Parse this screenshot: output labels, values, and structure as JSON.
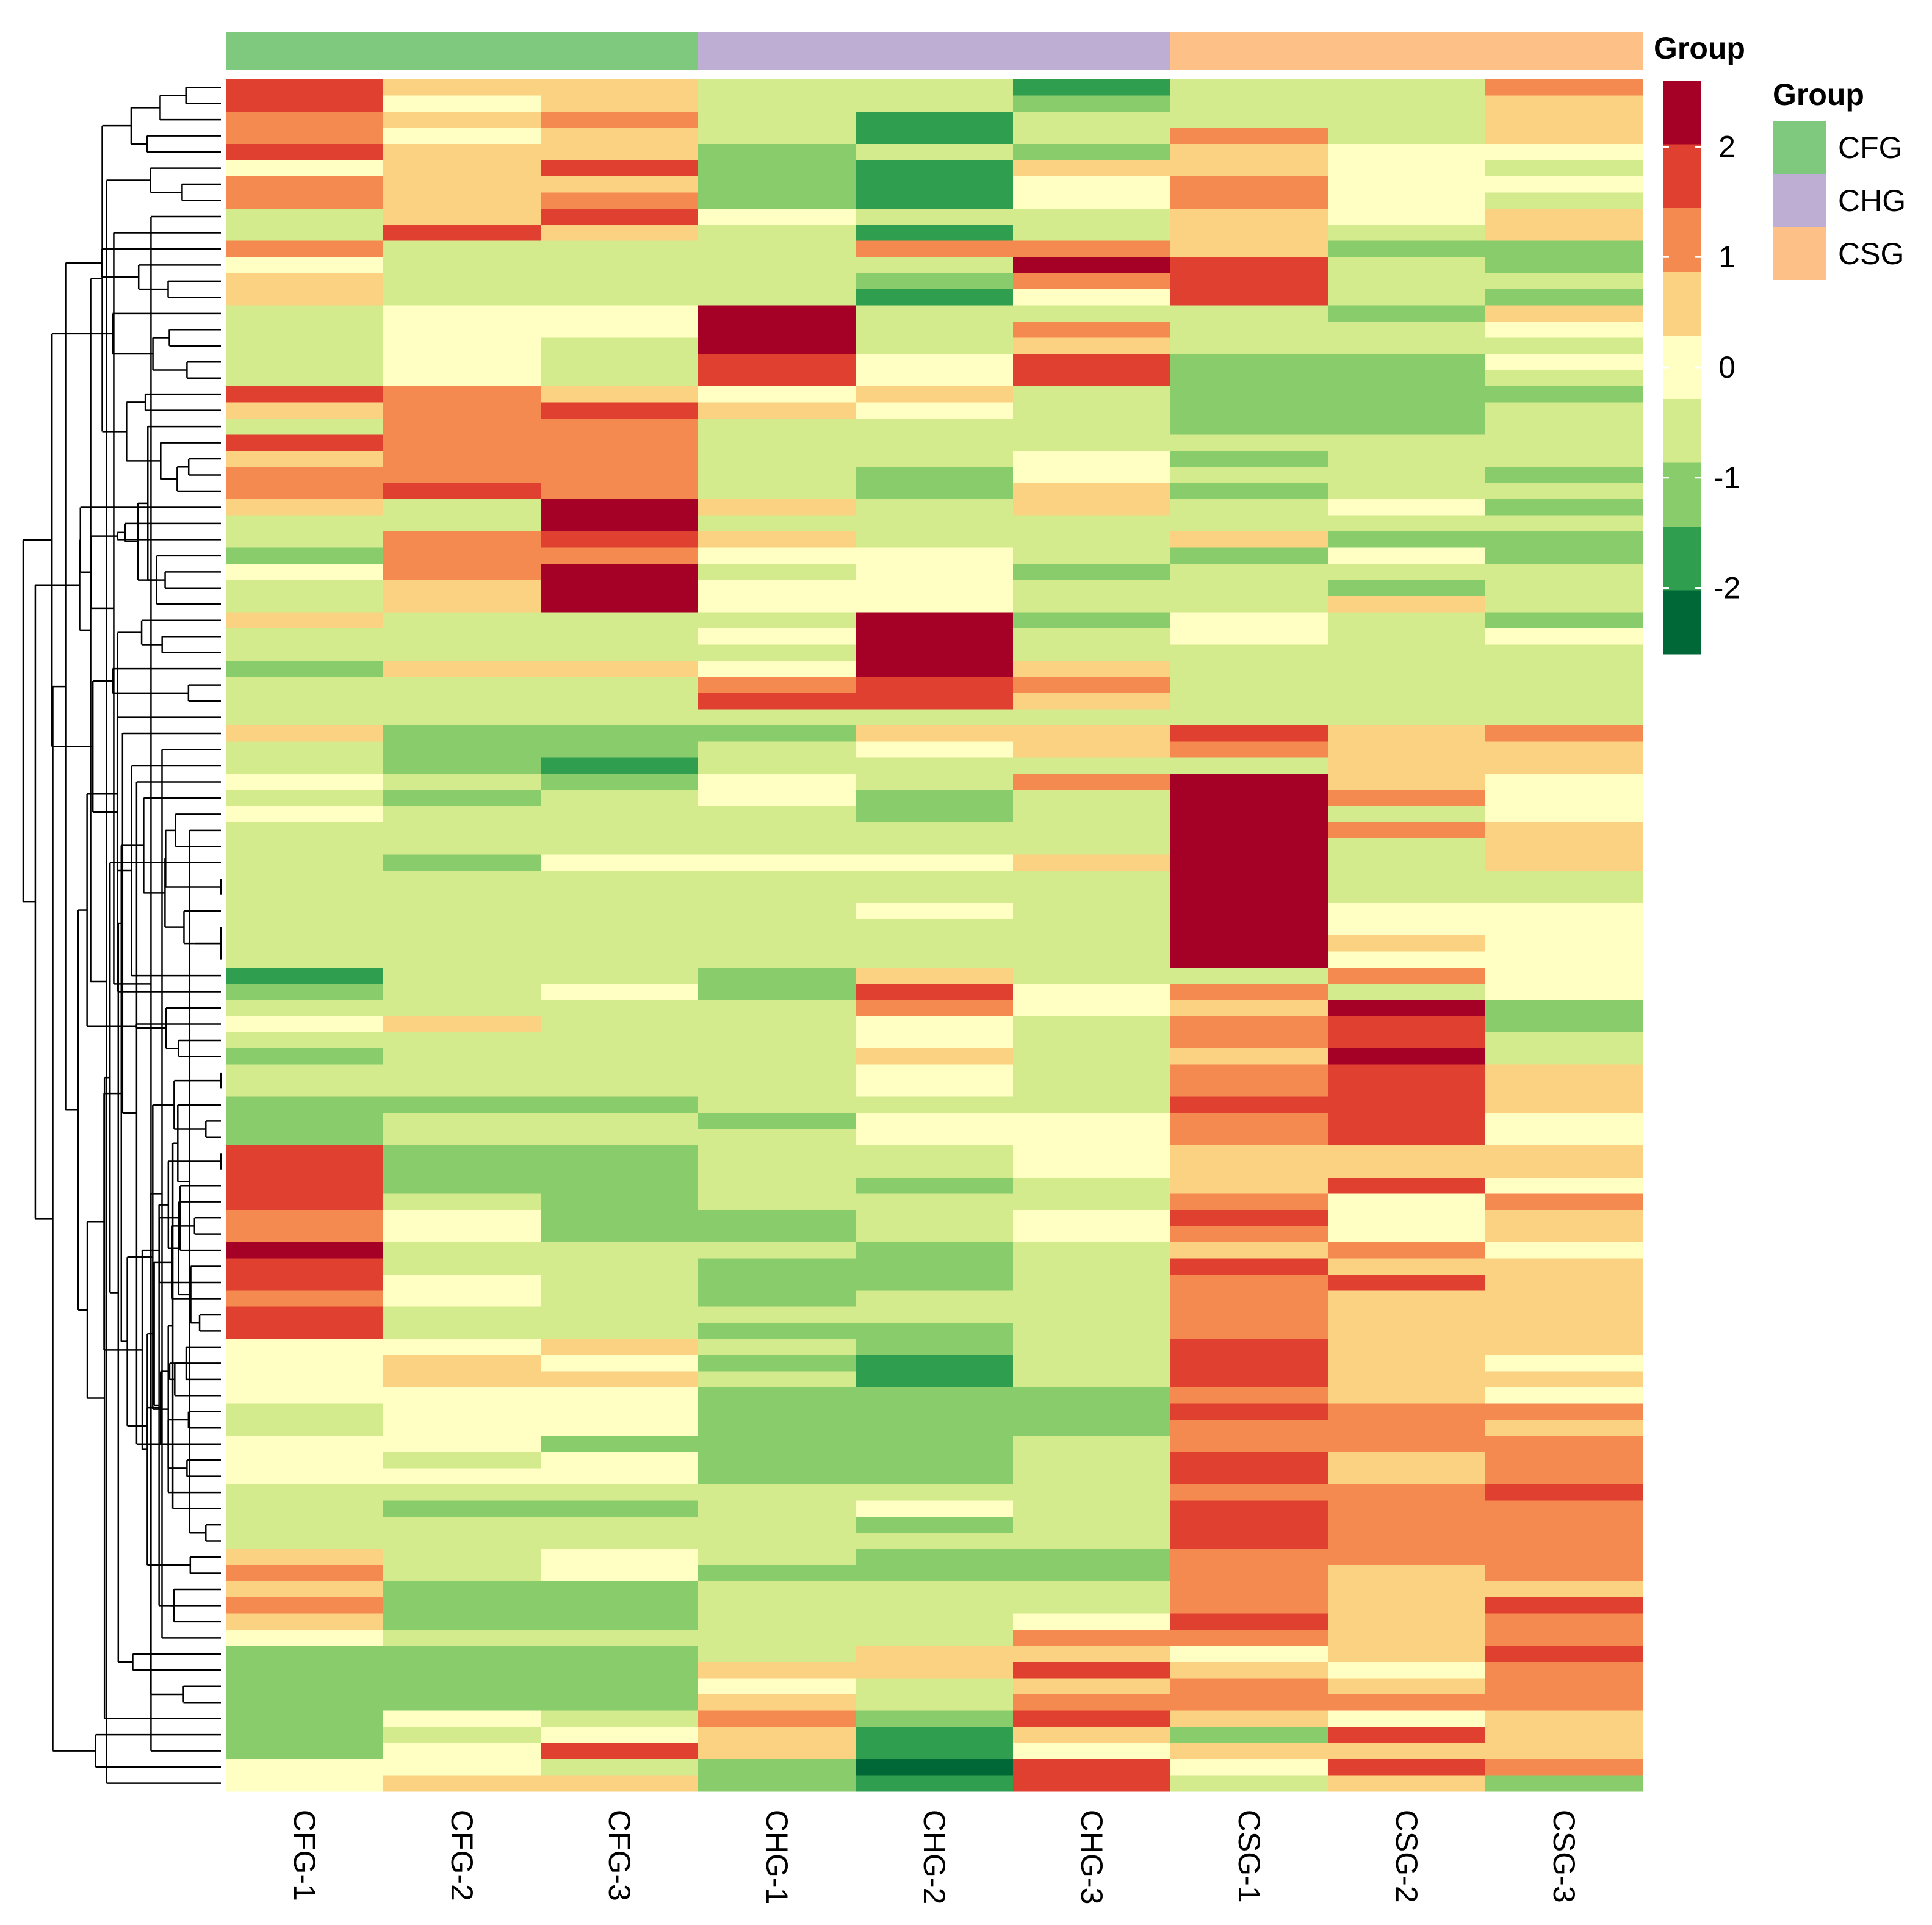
{
  "chart_data": {
    "type": "heatmap",
    "title": "",
    "columns": [
      "CFG-1",
      "CFG-2",
      "CFG-3",
      "CHG-1",
      "CHG-2",
      "CHG-3",
      "CSG-1",
      "CSG-2",
      "CSG-3"
    ],
    "column_groups": [
      "CFG",
      "CFG",
      "CFG",
      "CHG",
      "CHG",
      "CHG",
      "CSG",
      "CSG",
      "CSG"
    ],
    "annotation_label": "Group",
    "groups": [
      {
        "name": "CFG",
        "color": "#7fc97f"
      },
      {
        "name": "CHG",
        "color": "#beaed4"
      },
      {
        "name": "CSG",
        "color": "#fdc086"
      }
    ],
    "legend": {
      "scale_ticks": [
        "2",
        "1",
        "0",
        "-1",
        "-2"
      ],
      "tick_values": [
        2,
        1,
        0,
        -1,
        -2
      ],
      "range": [
        -2.6,
        2.6
      ],
      "colors": [
        "#a50026",
        "#d73027",
        "#f46d43",
        "#fdae61",
        "#fee08b",
        "#ffffbf",
        "#d9ef8b",
        "#a6d96a",
        "#66bd63",
        "#1a9850",
        "#006837"
      ],
      "display_colors": [
        "#a50026",
        "#e04030",
        "#f58a50",
        "#fbd281",
        "#ffffc4",
        "#d3ea8d",
        "#88cc6c",
        "#2f9e4f",
        "#006837"
      ]
    },
    "row_dendrogram": "shown (hierarchical clustering of rows)",
    "values": [
      [
        2,
        0.7,
        0.8,
        -0.8,
        -0.8,
        -1.7,
        -0.8,
        -0.8,
        1.3
      ],
      [
        2,
        0.1,
        0.8,
        -0.8,
        -0.8,
        -1.2,
        -0.8,
        -0.8,
        0.8
      ],
      [
        1.3,
        0.8,
        1.3,
        -0.8,
        -1.8,
        -0.8,
        -0.8,
        -0.8,
        0.8
      ],
      [
        1.3,
        0.1,
        0.8,
        -0.8,
        -1.8,
        -0.8,
        1.3,
        -0.8,
        0.8
      ],
      [
        2,
        0.8,
        0.8,
        -1.2,
        -0.8,
        -1.2,
        0.8,
        0.1,
        0.1
      ],
      [
        0.1,
        0.8,
        2,
        -1.2,
        -1.8,
        0.8,
        0.8,
        0.1,
        -0.8
      ],
      [
        1.3,
        0.8,
        0.8,
        -1.2,
        -1.8,
        0.1,
        1.3,
        0.1,
        0.1
      ],
      [
        1.3,
        0.8,
        1.3,
        -1.2,
        -1.8,
        0.1,
        1.3,
        0.1,
        -0.8
      ],
      [
        -0.8,
        0.8,
        2,
        0.1,
        -0.8,
        -0.8,
        0.8,
        0.1,
        0.8
      ],
      [
        -0.8,
        2,
        0.8,
        -0.8,
        -1.8,
        -0.8,
        0.8,
        -0.8,
        0.8
      ],
      [
        1.3,
        -0.8,
        -0.8,
        -0.8,
        1.3,
        1.3,
        0.8,
        -1.2,
        -1.2
      ],
      [
        0.1,
        -0.8,
        -0.8,
        -0.8,
        -0.8,
        2.6,
        2,
        -0.8,
        -1.2
      ],
      [
        0.8,
        -0.8,
        -0.8,
        -0.8,
        -1.2,
        1.3,
        2,
        -0.8,
        -0.8
      ],
      [
        0.8,
        -0.8,
        -0.8,
        -0.8,
        -1.8,
        0.1,
        2,
        -0.8,
        -1.2
      ],
      [
        -0.8,
        0.1,
        0.1,
        2.6,
        -0.8,
        -0.8,
        -0.8,
        -1.2,
        0.8
      ],
      [
        -0.8,
        0.1,
        0.1,
        2.6,
        -0.8,
        1.3,
        -0.8,
        -0.8,
        0.1
      ],
      [
        -0.8,
        0.1,
        -0.8,
        2.6,
        -0.8,
        0.8,
        -0.8,
        -0.8,
        -0.8
      ],
      [
        -0.8,
        0.1,
        -0.8,
        2,
        0.1,
        2,
        -1.2,
        -1.2,
        0.1
      ],
      [
        -0.8,
        0.1,
        -0.8,
        2,
        0.1,
        2,
        -1.2,
        -1.2,
        -0.8
      ],
      [
        2,
        1.3,
        0.8,
        0.1,
        0.8,
        -0.8,
        -1.2,
        -1.2,
        -1.2
      ],
      [
        0.8,
        1.3,
        2,
        0.8,
        0.1,
        -0.8,
        -1.2,
        -1.2,
        -0.8
      ],
      [
        -0.8,
        1.3,
        1.3,
        -0.8,
        -0.8,
        -0.8,
        -1.2,
        -1.2,
        -0.8
      ],
      [
        2,
        1.3,
        1.3,
        -0.8,
        -0.8,
        -0.8,
        -0.8,
        -0.8,
        -0.8
      ],
      [
        0.8,
        1.3,
        1.3,
        -0.8,
        -0.8,
        0.1,
        -1.2,
        -0.8,
        -0.8
      ],
      [
        1.3,
        1.3,
        1.3,
        -0.8,
        -1.2,
        0.1,
        -0.8,
        -0.8,
        -1.2
      ],
      [
        1.3,
        2,
        1.3,
        -0.8,
        -1.2,
        0.8,
        -1.2,
        -0.8,
        -0.8
      ],
      [
        0.8,
        -0.8,
        2.6,
        0.8,
        -0.8,
        0.8,
        -0.8,
        0.1,
        -1.2
      ],
      [
        -0.8,
        -0.8,
        2.6,
        -0.8,
        -0.8,
        -0.8,
        -0.8,
        -0.8,
        -0.8
      ],
      [
        -0.8,
        1.3,
        2,
        0.8,
        -0.8,
        -0.8,
        0.8,
        -1.2,
        -1.2
      ],
      [
        -1.2,
        1.3,
        1.3,
        0.1,
        0.1,
        -0.8,
        -1.2,
        0.1,
        -1.2
      ],
      [
        0.1,
        1.3,
        2.6,
        -0.8,
        0.1,
        -1.2,
        -0.8,
        -0.8,
        -0.8
      ],
      [
        -0.8,
        0.8,
        2.6,
        0.1,
        0.1,
        -0.8,
        -0.8,
        -1.2,
        -0.8
      ],
      [
        -0.8,
        0.8,
        2.6,
        0.1,
        0.1,
        -0.8,
        -0.8,
        0.8,
        -0.8
      ],
      [
        0.8,
        -0.8,
        -0.8,
        -0.8,
        2.6,
        -1.2,
        0.1,
        -0.8,
        -1.2
      ],
      [
        -0.8,
        -0.8,
        -0.8,
        0.1,
        2.6,
        -0.8,
        0.1,
        -0.8,
        0.1
      ],
      [
        -0.8,
        -0.8,
        -0.8,
        -0.8,
        2.6,
        -0.8,
        -0.8,
        -0.8,
        -0.8
      ],
      [
        -1.2,
        0.8,
        0.8,
        0.1,
        2.6,
        0.8,
        -0.8,
        -0.8,
        -0.8
      ],
      [
        -0.8,
        -0.8,
        -0.8,
        1.3,
        2,
        1.3,
        -0.8,
        -0.8,
        -0.8
      ],
      [
        -0.8,
        -0.8,
        -0.8,
        2,
        2,
        0.8,
        -0.8,
        -0.8,
        -0.8
      ],
      [
        -0.8,
        -0.8,
        -0.8,
        -0.8,
        -0.8,
        -0.8,
        -0.8,
        -0.8,
        -0.8
      ],
      [
        0.8,
        -1.2,
        -1.2,
        -1.2,
        0.8,
        0.8,
        2,
        0.8,
        1.3
      ],
      [
        -0.8,
        -1.2,
        -1.2,
        -0.8,
        0.1,
        0.8,
        1.3,
        0.8,
        0.8
      ],
      [
        -0.8,
        -1.2,
        -1.8,
        -0.8,
        -0.8,
        -0.8,
        -0.8,
        0.8,
        0.8
      ],
      [
        0.1,
        -0.8,
        -1.2,
        0.1,
        -0.8,
        1.3,
        2.6,
        0.8,
        0.1
      ],
      [
        -0.8,
        -1.2,
        -0.8,
        0.1,
        -1.2,
        -0.8,
        2.6,
        1.3,
        0.1
      ],
      [
        0.1,
        -0.8,
        -0.8,
        -0.8,
        -1.2,
        -0.8,
        2.6,
        -0.8,
        0.1
      ],
      [
        -0.8,
        -0.8,
        -0.8,
        -0.8,
        -0.8,
        -0.8,
        2.6,
        1.3,
        0.8
      ],
      [
        -0.8,
        -0.8,
        -0.8,
        -0.8,
        -0.8,
        -0.8,
        2.6,
        -0.8,
        0.8
      ],
      [
        -0.8,
        -1.2,
        0.1,
        0.1,
        0.1,
        0.8,
        2.6,
        -0.8,
        0.8
      ],
      [
        -0.8,
        -0.8,
        -0.8,
        -0.8,
        -0.8,
        -0.8,
        2.6,
        -0.8,
        -0.8
      ],
      [
        -0.8,
        -0.8,
        -0.8,
        -0.8,
        -0.8,
        -0.8,
        2.6,
        -0.8,
        -0.8
      ],
      [
        -0.8,
        -0.8,
        -0.8,
        -0.8,
        0.1,
        -0.8,
        2.6,
        0.1,
        0.1
      ],
      [
        -0.8,
        -0.8,
        -0.8,
        -0.8,
        -0.8,
        -0.8,
        2.6,
        0.1,
        0.1
      ],
      [
        -0.8,
        -0.8,
        -0.8,
        -0.8,
        -0.8,
        -0.8,
        2.6,
        0.8,
        0.1
      ],
      [
        -0.8,
        -0.8,
        -0.8,
        -0.8,
        -0.8,
        -0.8,
        2.6,
        0.1,
        0.1
      ],
      [
        -1.8,
        -0.8,
        -0.8,
        -1.2,
        0.8,
        -0.8,
        -0.8,
        1.3,
        0.1
      ],
      [
        -1.2,
        -0.8,
        0.1,
        -1.2,
        2,
        0.1,
        1.3,
        -0.8,
        0.1
      ],
      [
        -0.8,
        -0.8,
        -0.8,
        -0.8,
        1.3,
        0.1,
        0.8,
        2.6,
        -1.2
      ],
      [
        0.1,
        0.8,
        -0.8,
        -0.8,
        0.1,
        -0.8,
        1.3,
        2,
        -1.2
      ],
      [
        -0.8,
        -0.8,
        -0.8,
        -0.8,
        0.1,
        -0.8,
        1.3,
        2,
        -0.8
      ],
      [
        -1.2,
        -0.8,
        -0.8,
        -0.8,
        0.8,
        -0.8,
        0.8,
        2.6,
        -0.8
      ],
      [
        -0.8,
        -0.8,
        -0.8,
        -0.8,
        0.1,
        -0.8,
        1.3,
        2,
        0.8
      ],
      [
        -0.8,
        -0.8,
        -0.8,
        -0.8,
        0.1,
        -0.8,
        1.3,
        2,
        0.8
      ],
      [
        -1.2,
        -1.2,
        -1.2,
        -0.8,
        -0.8,
        -0.8,
        2,
        2,
        0.8
      ],
      [
        -1.2,
        -0.8,
        -0.8,
        -1.2,
        0.1,
        0.1,
        1.3,
        2,
        0.1
      ],
      [
        -1.2,
        -0.8,
        -0.8,
        -0.8,
        0.1,
        0.1,
        1.3,
        2,
        0.1
      ],
      [
        2,
        -1.2,
        -1.2,
        -0.8,
        -0.8,
        0.1,
        0.8,
        0.8,
        0.8
      ],
      [
        2,
        -1.2,
        -1.2,
        -0.8,
        -0.8,
        0.1,
        0.8,
        0.8,
        0.8
      ],
      [
        2,
        -1.2,
        -1.2,
        -0.8,
        -1.2,
        -0.8,
        0.8,
        2,
        0.1
      ],
      [
        2,
        -0.8,
        -1.2,
        -0.8,
        -0.8,
        -0.8,
        1.3,
        0.1,
        1.3
      ],
      [
        1.3,
        0.1,
        -1.2,
        -1.2,
        -0.8,
        0.1,
        2,
        0.1,
        0.8
      ],
      [
        1.3,
        0.1,
        -1.2,
        -1.2,
        -0.8,
        0.1,
        1.3,
        0.1,
        0.8
      ],
      [
        2.6,
        -0.8,
        -0.8,
        -0.8,
        -1.2,
        -0.8,
        0.8,
        1.3,
        0.1
      ],
      [
        2,
        -0.8,
        -0.8,
        -1.2,
        -1.2,
        -0.8,
        2,
        0.8,
        0.8
      ],
      [
        2,
        0.1,
        -0.8,
        -1.2,
        -1.2,
        -0.8,
        1.3,
        2,
        0.8
      ],
      [
        1.3,
        0.1,
        -0.8,
        -1.2,
        -0.8,
        -0.8,
        1.3,
        0.8,
        0.8
      ],
      [
        2,
        -0.8,
        -0.8,
        -0.8,
        -0.8,
        -0.8,
        1.3,
        0.8,
        0.8
      ],
      [
        2,
        -0.8,
        -0.8,
        -1.2,
        -1.2,
        -0.8,
        1.3,
        0.8,
        0.8
      ],
      [
        0.1,
        0.1,
        0.8,
        -0.8,
        -1.2,
        -0.8,
        2,
        0.8,
        0.8
      ],
      [
        0.1,
        0.8,
        0.1,
        -1.2,
        -1.8,
        -0.8,
        2,
        0.8,
        0.1
      ],
      [
        0.1,
        0.8,
        0.8,
        -0.8,
        -1.8,
        -0.8,
        2,
        0.8,
        0.8
      ],
      [
        0.1,
        0.1,
        0.1,
        -1.2,
        -1.2,
        -1.2,
        1.3,
        0.8,
        0.1
      ],
      [
        -0.8,
        0.1,
        0.1,
        -1.2,
        -1.2,
        -1.2,
        2,
        1.3,
        1.3
      ],
      [
        -0.8,
        0.1,
        0.1,
        -1.2,
        -1.2,
        -1.2,
        1.3,
        1.3,
        0.8
      ],
      [
        0.1,
        0.1,
        -1.2,
        -1.2,
        -1.2,
        -0.8,
        1.3,
        1.3,
        1.3
      ],
      [
        0.1,
        -0.8,
        0.1,
        -1.2,
        -1.2,
        -0.8,
        2,
        0.8,
        1.3
      ],
      [
        0.1,
        0.1,
        0.1,
        -1.2,
        -1.2,
        -0.8,
        2,
        0.8,
        1.3
      ],
      [
        -0.8,
        -0.8,
        -0.8,
        -0.8,
        -0.8,
        -0.8,
        1.3,
        1.3,
        2
      ],
      [
        -0.8,
        -1.2,
        -1.2,
        -0.8,
        0.1,
        -0.8,
        2,
        1.3,
        1.3
      ],
      [
        -0.8,
        -0.8,
        -0.8,
        -0.8,
        -1.2,
        -0.8,
        2,
        1.3,
        1.3
      ],
      [
        -0.8,
        -0.8,
        -0.8,
        -0.8,
        -0.8,
        -0.8,
        2,
        1.3,
        1.3
      ],
      [
        0.8,
        -0.8,
        0.1,
        -0.8,
        -1.2,
        -1.2,
        1.3,
        1.3,
        1.3
      ],
      [
        1.3,
        -0.8,
        0.1,
        -1.2,
        -1.2,
        -1.2,
        1.3,
        0.8,
        1.3
      ],
      [
        0.8,
        -1.2,
        -1.2,
        -0.8,
        -0.8,
        -0.8,
        1.3,
        0.8,
        0.8
      ],
      [
        1.3,
        -1.2,
        -1.2,
        -0.8,
        -0.8,
        -0.8,
        1.3,
        0.8,
        2
      ],
      [
        0.8,
        -1.2,
        -1.2,
        -0.8,
        -0.8,
        0.1,
        2,
        0.8,
        1.3
      ],
      [
        0.1,
        -0.8,
        -0.8,
        -0.8,
        -0.8,
        1.3,
        1.3,
        0.8,
        1.3
      ],
      [
        -1.2,
        -1.2,
        -1.2,
        -0.8,
        0.8,
        0.8,
        0.1,
        0.8,
        2
      ],
      [
        -1.2,
        -1.2,
        -1.2,
        0.8,
        0.8,
        2,
        0.8,
        0.1,
        1.3
      ],
      [
        -1.2,
        -1.2,
        -1.2,
        0.1,
        -0.8,
        0.8,
        1.3,
        0.8,
        1.3
      ],
      [
        -1.2,
        -1.2,
        -1.2,
        0.8,
        -0.8,
        1.3,
        1.3,
        1.3,
        1.3
      ],
      [
        -1.2,
        0.1,
        -0.8,
        1.3,
        -1.2,
        2,
        0.8,
        0.1,
        0.8
      ],
      [
        -1.2,
        -0.8,
        0.1,
        0.8,
        -1.8,
        0.8,
        -1.2,
        2,
        0.8
      ],
      [
        -1.2,
        0.1,
        2,
        0.8,
        -1.8,
        0.1,
        0.8,
        0.8,
        0.8
      ],
      [
        0.1,
        0.1,
        -0.8,
        -1.2,
        -2.4,
        2,
        0.1,
        2,
        1.3
      ],
      [
        0.1,
        0.8,
        0.8,
        -1.2,
        -1.8,
        2,
        -0.8,
        0.8,
        -1.2
      ]
    ]
  }
}
